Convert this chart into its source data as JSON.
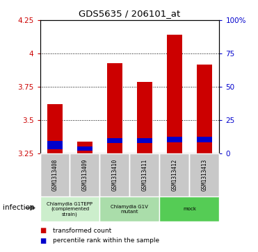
{
  "title": "GDS5635 / 206101_at",
  "samples": [
    "GSM1313408",
    "GSM1313409",
    "GSM1313410",
    "GSM1313411",
    "GSM1313412",
    "GSM1313413"
  ],
  "transformed_counts": [
    3.62,
    3.34,
    3.93,
    3.79,
    4.14,
    3.92
  ],
  "percentile_bottom": [
    3.285,
    3.275,
    3.33,
    3.33,
    3.335,
    3.335
  ],
  "percentile_top": [
    3.345,
    3.305,
    3.365,
    3.365,
    3.375,
    3.375
  ],
  "bar_base": 3.25,
  "ylim_left": [
    3.25,
    4.25
  ],
  "ylim_right": [
    0,
    100
  ],
  "yticks_left": [
    3.25,
    3.5,
    3.75,
    4.0,
    4.25
  ],
  "yticks_right": [
    0,
    25,
    50,
    75,
    100
  ],
  "ytick_labels_left": [
    "3.25",
    "3.5",
    "3.75",
    "4",
    "4.25"
  ],
  "ytick_labels_right": [
    "0",
    "25",
    "50",
    "75",
    "100%"
  ],
  "bar_color": "#cc0000",
  "percentile_color": "#0000cc",
  "group_configs": [
    {
      "span": [
        0,
        1
      ],
      "color": "#cceecc",
      "label": "Chlamydia G1TEPP\n(complemented\nstrain)"
    },
    {
      "span": [
        2,
        3
      ],
      "color": "#aaddaa",
      "label": "Chlamydia G1V\nmutant"
    },
    {
      "span": [
        4,
        5
      ],
      "color": "#55cc55",
      "label": "mock"
    }
  ],
  "infection_label": "infection",
  "legend_entries": [
    "transformed count",
    "percentile rank within the sample"
  ],
  "sample_bg_color": "#c8c8c8",
  "bar_width": 0.5
}
